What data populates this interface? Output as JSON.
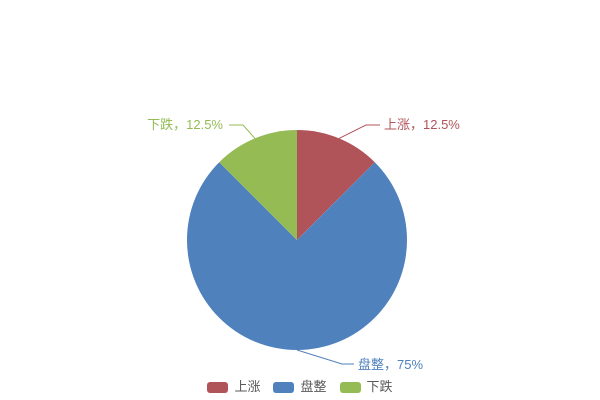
{
  "chart_data": {
    "type": "pie",
    "title": "",
    "categories": [
      "上涨",
      "盘整",
      "下跌"
    ],
    "values": [
      12.5,
      75,
      12.5
    ],
    "unit": "%",
    "colors": [
      "#b1545a",
      "#4f81bd",
      "#94bb54"
    ],
    "callout_labels": [
      "上涨，12.5%",
      "盘整，75%",
      "下跌，12.5%"
    ],
    "legend": {
      "position": "bottom",
      "items": [
        "上涨",
        "盘整",
        "下跌"
      ]
    },
    "start_angle": "top",
    "direction": "clockwise",
    "background": "#ffffff",
    "legend_text_color": "#595959"
  }
}
